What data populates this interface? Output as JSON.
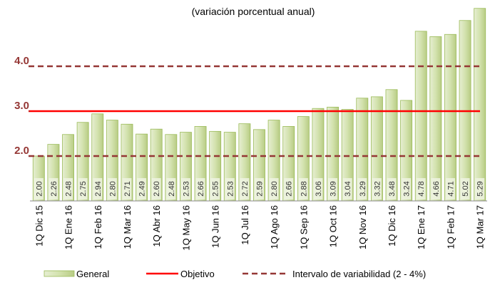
{
  "chart_data": {
    "type": "bar",
    "title": "(variación porcentual anual)",
    "categories": [
      "1Q Dic 15",
      null,
      "1Q Ene 16",
      null,
      "1Q Feb 16",
      null,
      "1Q Mar 16",
      null,
      "1Q Abr 16",
      null,
      "1Q May 16",
      null,
      "1Q Jun 16",
      null,
      "1Q Jul 16",
      null,
      "1Q Ago 16",
      null,
      "1Q Sep 16",
      null,
      "1Q Oct 16",
      null,
      "1Q Nov 16",
      null,
      "1Q Dic 16",
      null,
      "1Q Ene 17",
      null,
      "1Q Feb 17",
      null,
      "1Q Mar 17"
    ],
    "series": [
      {
        "name": "General",
        "color": "#c4d79b",
        "values": [
          2.0,
          2.26,
          2.48,
          2.75,
          2.94,
          2.8,
          2.71,
          2.49,
          2.6,
          2.48,
          2.53,
          2.66,
          2.55,
          2.53,
          2.72,
          2.59,
          2.8,
          2.66,
          2.88,
          3.06,
          3.09,
          3.04,
          3.29,
          3.32,
          3.48,
          3.24,
          4.78,
          4.66,
          4.71,
          5.02,
          5.29
        ],
        "value_labels": [
          "2.00",
          "2.26",
          "2.48",
          "2.75",
          "2.94",
          "2.80",
          "2.71",
          "2.49",
          "2.60",
          "2.48",
          "2.53",
          "2.66",
          "2.55",
          "2.53",
          "2.72",
          "2.59",
          "2.80",
          "2.66",
          "2.88",
          "3.06",
          "3.09",
          "3.04",
          "3.29",
          "3.32",
          "3.48",
          "3.24",
          "4.78",
          "4.66",
          "4.71",
          "5.02",
          "5.29"
        ]
      }
    ],
    "objective": {
      "name": "Objetivo",
      "value": 3,
      "color": "#ff0000"
    },
    "interval": {
      "name": "Intervalo de variabilidad (2 - 4%)",
      "values": [
        2,
        4
      ],
      "color": "#953735"
    },
    "ylim": [
      1,
      5.5
    ],
    "yticks": [
      {
        "value": 2,
        "label": "2.0"
      },
      {
        "value": 3,
        "label": "3.0"
      },
      {
        "value": 4,
        "label": "4.0"
      }
    ]
  }
}
